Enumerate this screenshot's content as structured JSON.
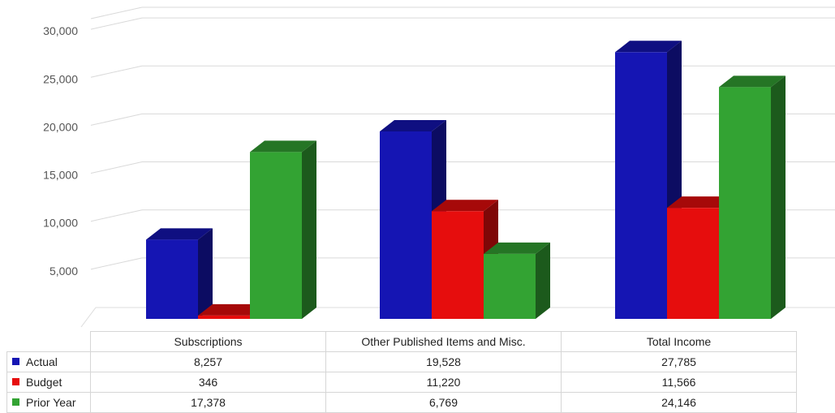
{
  "chart_data": {
    "type": "bar",
    "title": "",
    "xlabel": "",
    "ylabel": "",
    "categories": [
      "Subscriptions",
      "Other Published Items and Misc.",
      "Total Income"
    ],
    "series": [
      {
        "name": "Actual",
        "values": [
          8257,
          19528,
          27785
        ],
        "color": "#1515b3"
      },
      {
        "name": "Budget",
        "values": [
          346,
          11220,
          11566
        ],
        "color": "#e60d0d"
      },
      {
        "name": "Prior Year",
        "values": [
          17378,
          6769,
          24146
        ],
        "color": "#33a333"
      }
    ],
    "display_values": [
      [
        "8,257",
        "19,528",
        "27,785"
      ],
      [
        "346",
        "11,220",
        "11,566"
      ],
      [
        "17,378",
        "6,769",
        "24,146"
      ]
    ],
    "ylim": [
      0,
      30000
    ],
    "yticks": [
      5000,
      10000,
      15000,
      20000,
      25000,
      30000
    ],
    "ytick_labels": [
      "5,000",
      "10,000",
      "15,000",
      "20,000",
      "25,000",
      "30,000"
    ],
    "grid": true,
    "legend": "data table below chart",
    "style": "3d clustered columns"
  }
}
